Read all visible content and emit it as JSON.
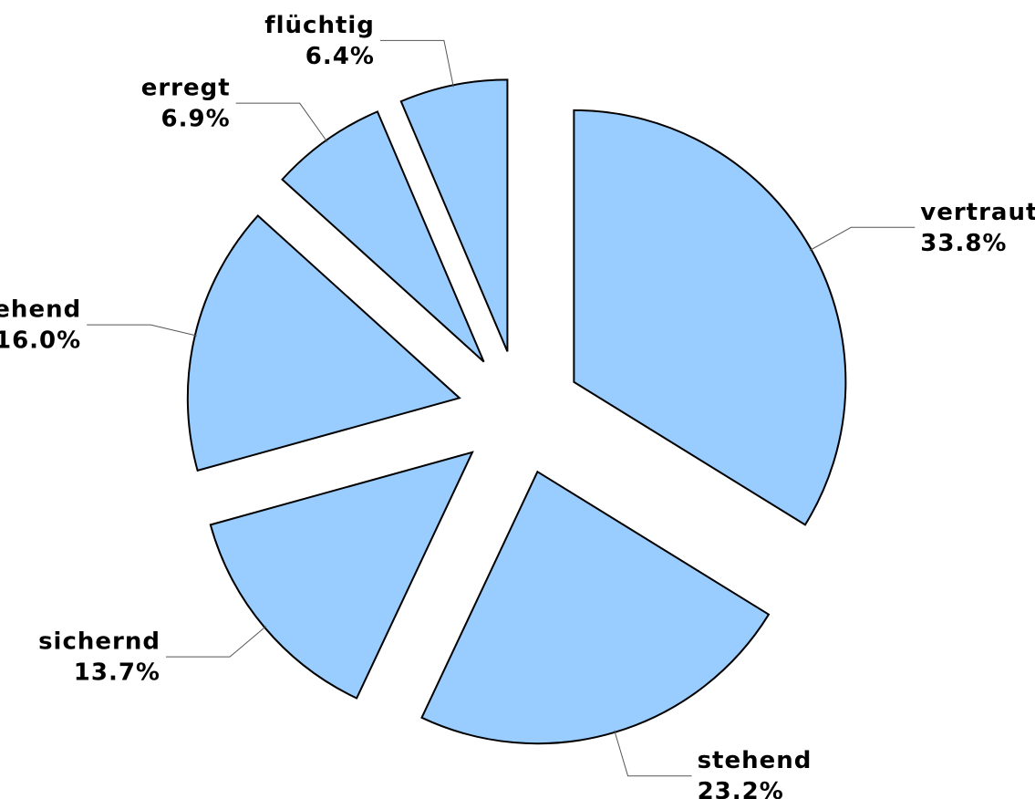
{
  "chart_data": {
    "type": "pie",
    "categories": [
      "vertraut",
      "stehend",
      "sichernd",
      "ziehend",
      "erregt",
      "flüchtig"
    ],
    "values": [
      33.8,
      23.2,
      13.7,
      16.0,
      6.9,
      6.4
    ],
    "value_labels": [
      "33.8%",
      "23.2%",
      "13.7%",
      "16.0%",
      "6.9%",
      "6.4%"
    ],
    "color": "#99ccff"
  }
}
